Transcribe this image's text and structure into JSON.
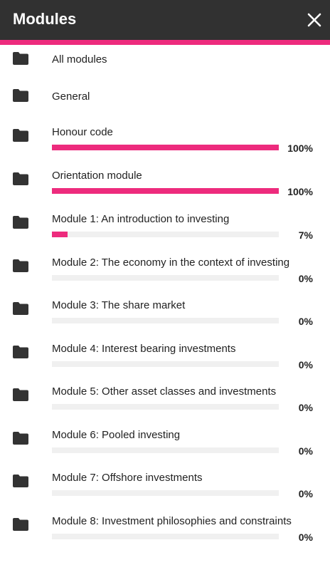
{
  "header": {
    "title": "Modules",
    "close_icon": "close-icon"
  },
  "colors": {
    "header_bg": "#313131",
    "accent": "#ed2b7d",
    "track": "#f0f0f0"
  },
  "items": [
    {
      "label": "All modules"
    },
    {
      "label": "General"
    },
    {
      "label": "Honour code",
      "progress": 100,
      "percent_text": "100%"
    },
    {
      "label": "Orientation module",
      "progress": 100,
      "percent_text": "100%"
    },
    {
      "label": "Module 1: An introduction to investing",
      "progress": 7,
      "percent_text": "7%"
    },
    {
      "label": "Module 2: The economy in the context of investing",
      "progress": 0,
      "percent_text": "0%"
    },
    {
      "label": "Module 3: The share market",
      "progress": 0,
      "percent_text": "0%"
    },
    {
      "label": "Module 4: Interest bearing investments",
      "progress": 0,
      "percent_text": "0%"
    },
    {
      "label": "Module 5: Other asset classes and investments",
      "progress": 0,
      "percent_text": "0%"
    },
    {
      "label": "Module 6: Pooled investing",
      "progress": 0,
      "percent_text": "0%"
    },
    {
      "label": "Module 7: Offshore investments",
      "progress": 0,
      "percent_text": "0%"
    },
    {
      "label": "Module 8: Investment philosophies and constraints",
      "progress": 0,
      "percent_text": "0%"
    }
  ]
}
